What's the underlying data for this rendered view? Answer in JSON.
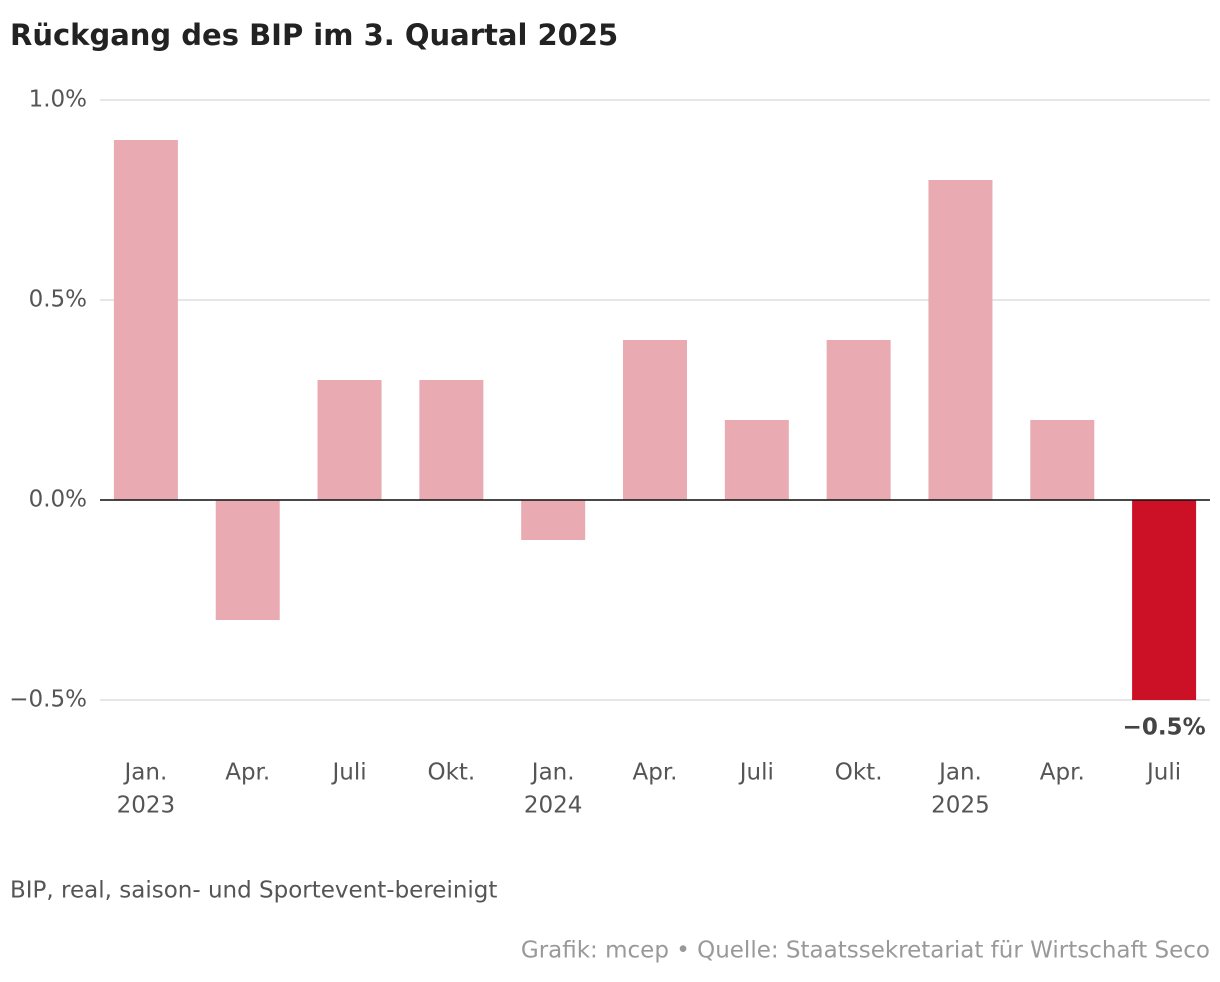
{
  "chart_data": {
    "type": "bar",
    "title": "Rückgang des BIP im 3. Quartal 2025",
    "categories": [
      "Jan.",
      "Apr.",
      "Juli",
      "Okt.",
      "Jan.",
      "Apr.",
      "Juli",
      "Okt.",
      "Jan.",
      "Apr.",
      "Juli"
    ],
    "category_years": [
      "2023",
      null,
      null,
      null,
      "2024",
      null,
      null,
      null,
      "2025",
      null,
      null
    ],
    "values": [
      0.9,
      -0.3,
      0.3,
      0.3,
      -0.1,
      0.4,
      0.2,
      0.4,
      0.8,
      0.2,
      -0.5
    ],
    "value_labels": [
      null,
      null,
      null,
      null,
      null,
      null,
      null,
      null,
      null,
      null,
      "−0.5%"
    ],
    "colors": [
      "#eaaab2",
      "#eaaab2",
      "#eaaab2",
      "#eaaab2",
      "#eaaab2",
      "#eaaab2",
      "#eaaab2",
      "#eaaab2",
      "#eaaab2",
      "#eaaab2",
      "#cc1126"
    ],
    "ylim": [
      -0.5,
      1.0
    ],
    "yticks": [
      {
        "value": -0.5,
        "label": "−0.5%"
      },
      {
        "value": 0,
        "label": "0.0%"
      },
      {
        "value": 0.5,
        "label": "0.5%"
      },
      {
        "value": 1.0,
        "label": "1.0%"
      }
    ],
    "grid": true,
    "note": "BIP, real, saison- und Sportevent-bereinigt",
    "source": "Grafik: mcep • Quelle: Staatssekretariat für Wirtschaft Seco"
  }
}
